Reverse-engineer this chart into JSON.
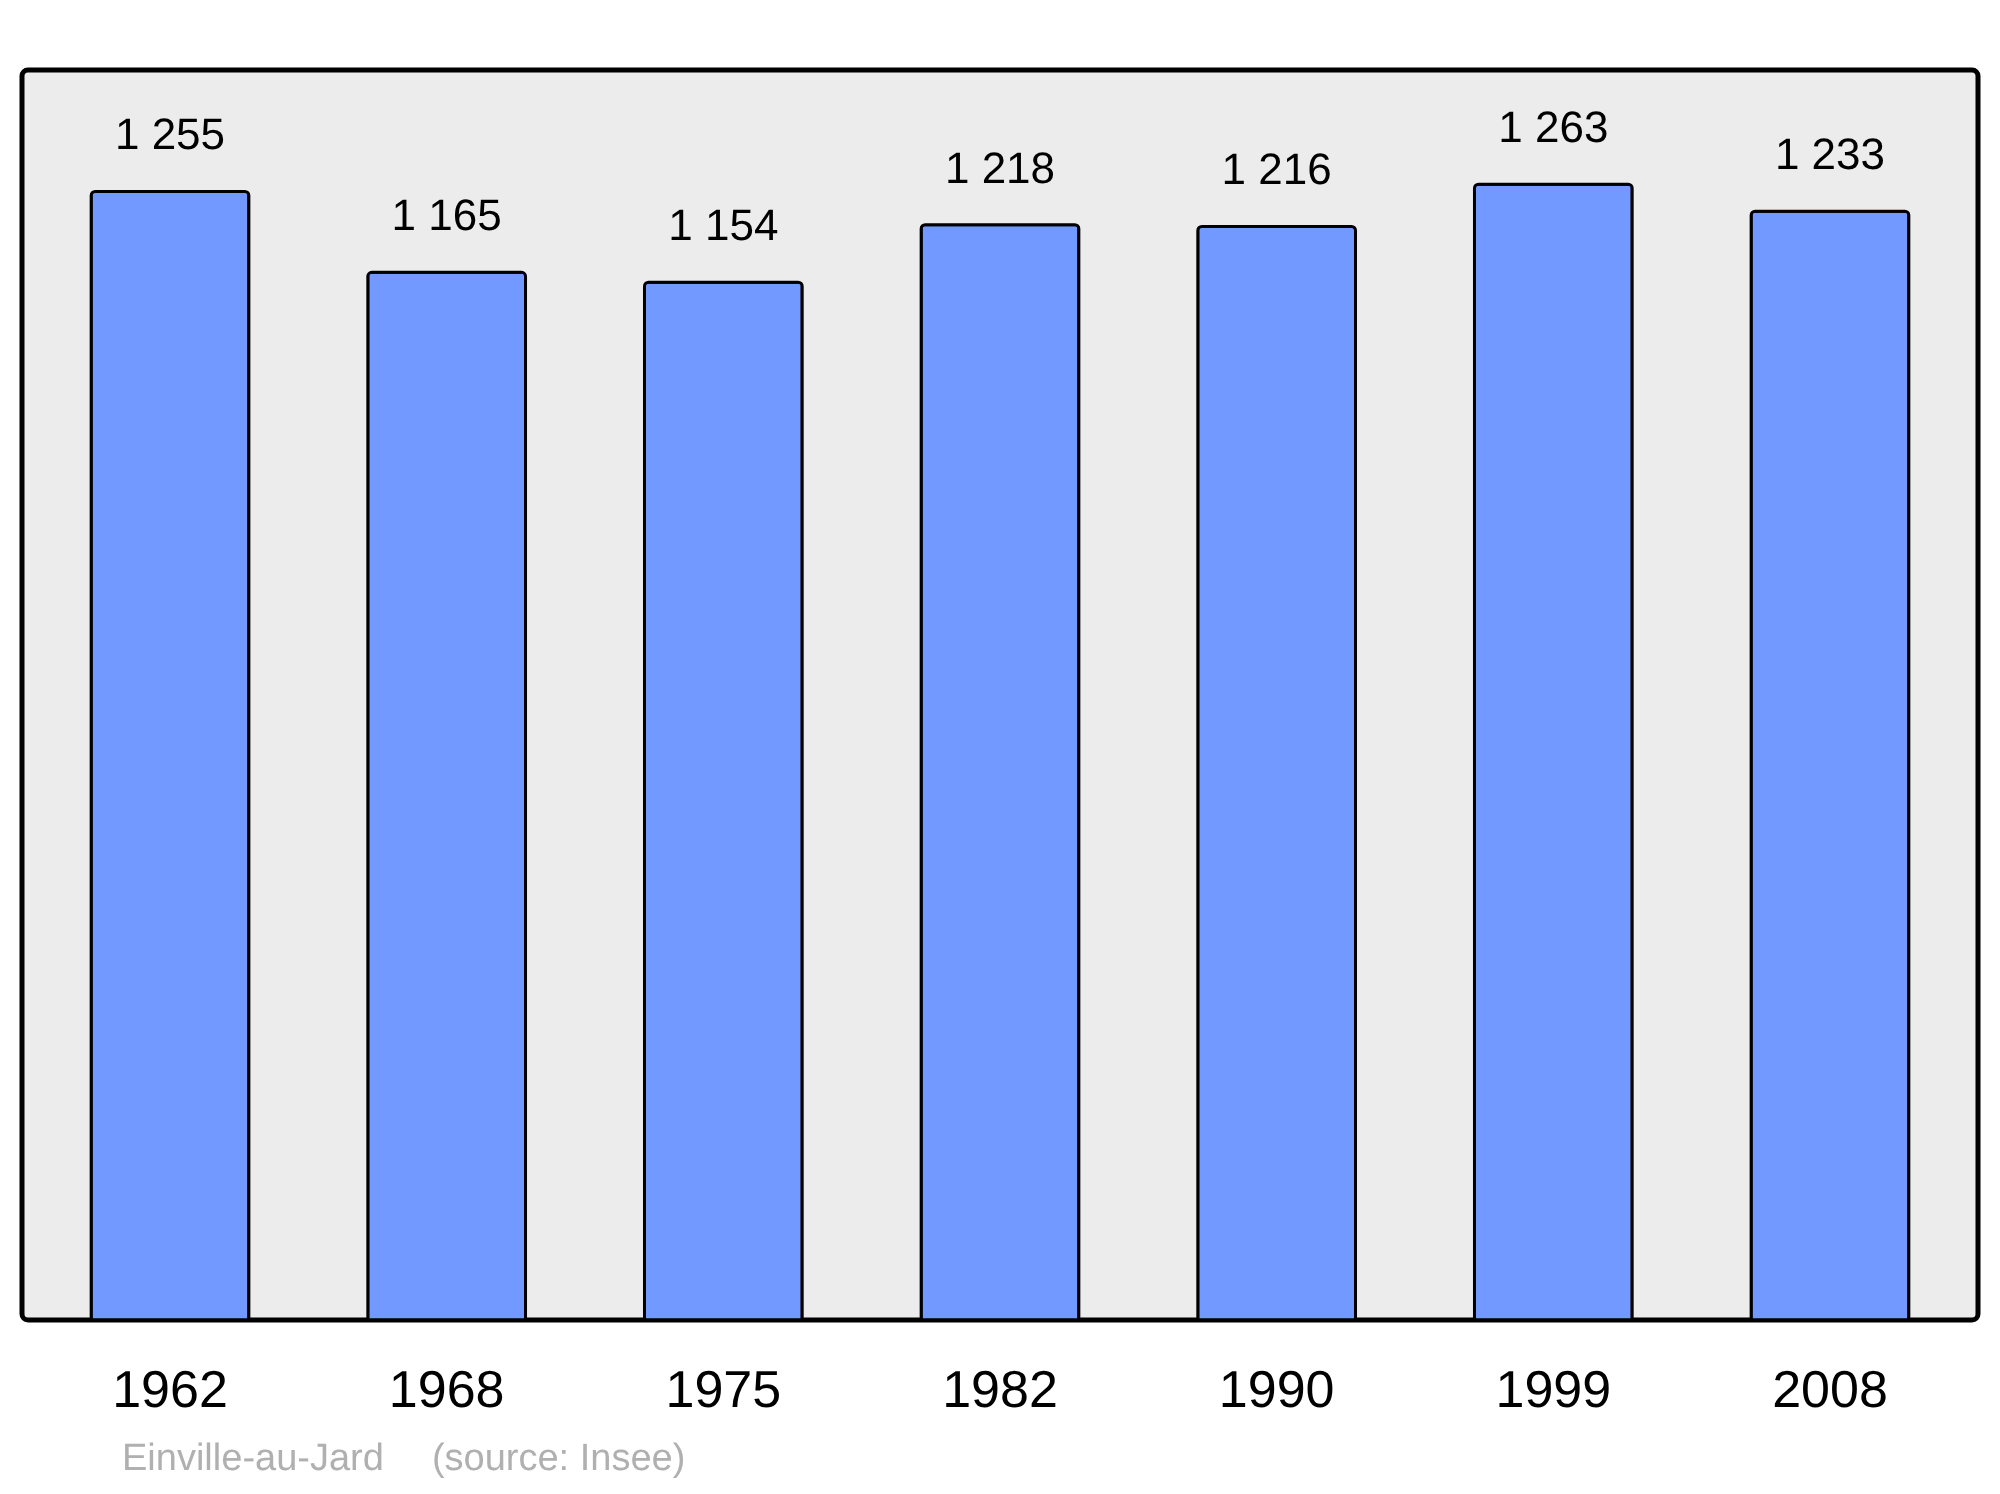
{
  "chart_data": {
    "type": "bar",
    "categories": [
      "1962",
      "1968",
      "1975",
      "1982",
      "1990",
      "1999",
      "2008"
    ],
    "values": [
      1255,
      1165,
      1154,
      1218,
      1216,
      1263,
      1233
    ],
    "value_labels": [
      "1 255",
      "1 165",
      "1 154",
      "1 218",
      "1 216",
      "1 263",
      "1 233"
    ],
    "color": "#7299ff",
    "ylim": [
      0,
      1390
    ],
    "tick_labels": "x",
    "annotations": [
      "Einville-au-Jard",
      "(source: Insee)"
    ]
  }
}
